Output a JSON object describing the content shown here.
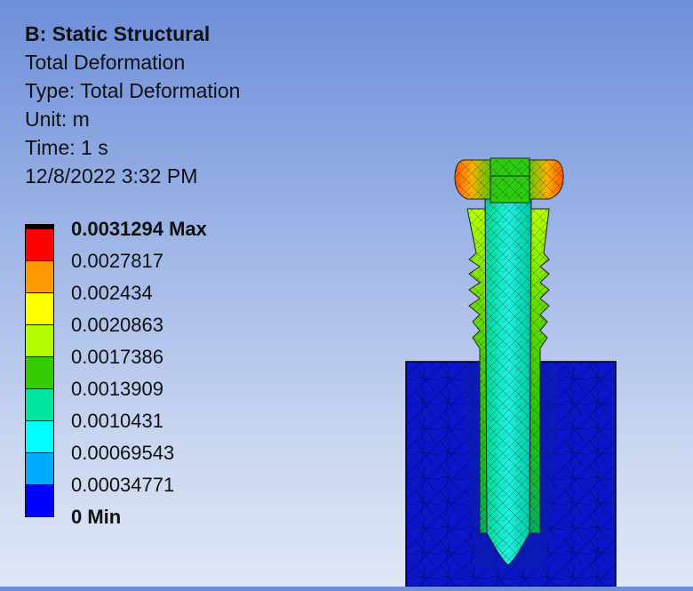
{
  "header": {
    "title": "B: Static Structural",
    "result": "Total Deformation",
    "type": "Type: Total Deformation",
    "unit": "Unit: m",
    "time": "Time: 1 s",
    "date": "12/8/2022 3:32 PM"
  },
  "legend": {
    "labels": [
      "0.0031294 Max",
      "0.0027817",
      "0.002434",
      "0.0020863",
      "0.0017386",
      "0.0013909",
      "0.0010431",
      "0.00069543",
      "0.00034771",
      "0 Min"
    ],
    "colors": [
      "#ff0000",
      "#ff9900",
      "#ffff00",
      "#b3ff00",
      "#33cc00",
      "#00e6a0",
      "#00ffff",
      "#00aaff",
      "#0000ff"
    ]
  }
}
